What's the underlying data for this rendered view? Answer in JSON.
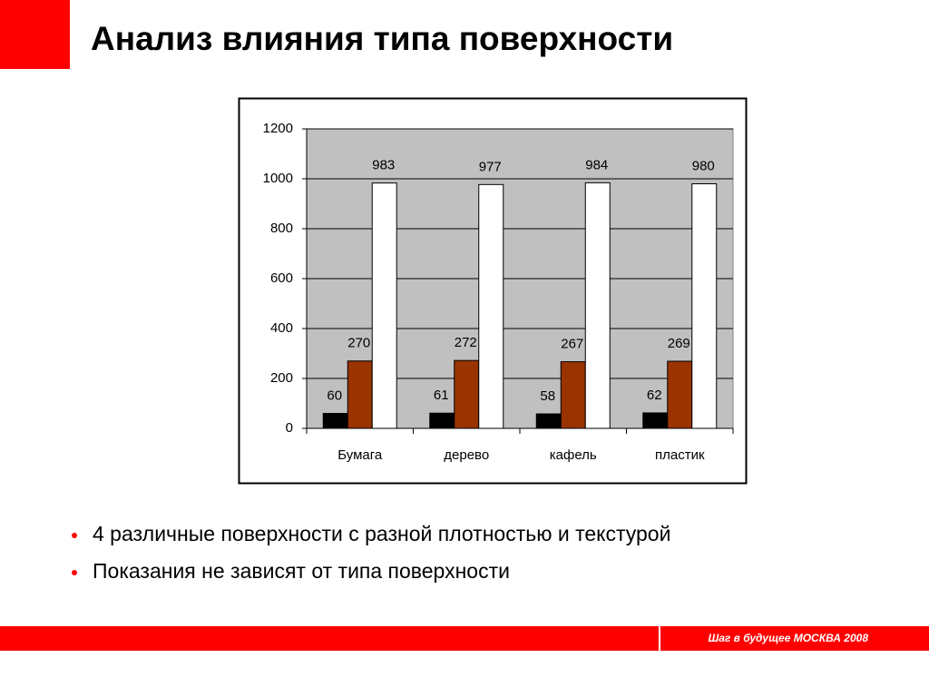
{
  "slide": {
    "title": "Анализ влияния типа поверхности",
    "bullets": [
      "4 различные  поверхности с разной плотностью и текстурой",
      "Показания не зависят от типа поверхности"
    ],
    "footer": "Шаг в будущее  МОСКВА 2008"
  },
  "chart_data": {
    "type": "bar",
    "categories": [
      "Бумага",
      "дерево",
      "кафель",
      "пластик"
    ],
    "series": [
      {
        "color": "#000000",
        "values": [
          60,
          61,
          58,
          62
        ]
      },
      {
        "color": "#993300",
        "values": [
          270,
          272,
          267,
          269
        ]
      },
      {
        "color": "#ffffff",
        "values": [
          983,
          977,
          984,
          980
        ]
      }
    ],
    "ylim": [
      0,
      1200
    ],
    "yticks": [
      0,
      200,
      400,
      600,
      800,
      1000,
      1200
    ],
    "grid": true,
    "plot_background": "#c0c0c0"
  }
}
